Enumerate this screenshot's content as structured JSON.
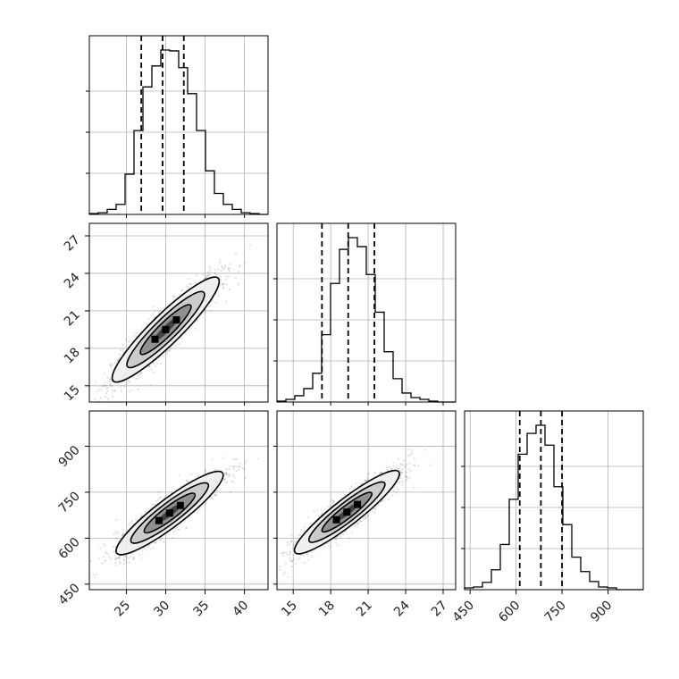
{
  "chart_data": {
    "type": "corner",
    "parameters": [
      {
        "ticks": [
          25,
          30,
          35,
          40
        ],
        "range": [
          20.3,
          43.0
        ]
      },
      {
        "ticks": [
          15,
          18,
          21,
          24,
          27
        ],
        "range": [
          13.7,
          28.0
        ]
      },
      {
        "ticks": [
          450,
          600,
          750,
          900
        ],
        "range": [
          432,
          1015
        ]
      }
    ],
    "quantiles": [
      0.16,
      0.5,
      0.84
    ],
    "colors": {
      "line": "#000000",
      "grid": "#b0b0b0",
      "points": "#000000"
    },
    "histograms": [
      {
        "bin_start": 20.3,
        "bin_width": 1.135,
        "counts": [
          1,
          2,
          6,
          12,
          48,
          100,
          152,
          177,
          196,
          195,
          175,
          144,
          100,
          52,
          25,
          12,
          6,
          2,
          1,
          0
        ],
        "quantile_lines": [
          26.9,
          29.6,
          32.3
        ]
      },
      {
        "bin_start": 13.7,
        "bin_width": 0.715,
        "counts": [
          1,
          3,
          7,
          15,
          32,
          75,
          132,
          170,
          183,
          173,
          142,
          100,
          56,
          26,
          10,
          5,
          3,
          1,
          0,
          0
        ],
        "quantile_lines": [
          17.3,
          19.4,
          21.5
        ]
      },
      {
        "bin_start": 432,
        "bin_width": 29.15,
        "counts": [
          2,
          3,
          8,
          22,
          50,
          100,
          150,
          173,
          182,
          160,
          114,
          72,
          36,
          20,
          9,
          3,
          2,
          0,
          0,
          0
        ],
        "quantile_lines": [
          612,
          681,
          750
        ]
      }
    ],
    "pairs": [
      {
        "x_param": 0,
        "y_param": 1,
        "center": [
          30.0,
          19.5
        ],
        "std": [
          3.4,
          2.1
        ],
        "corr": 0.92
      },
      {
        "x_param": 0,
        "y_param": 2,
        "center": [
          30.5,
          682
        ],
        "std": [
          3.4,
          68
        ],
        "corr": 0.91
      },
      {
        "x_param": 1,
        "y_param": 2,
        "center": [
          19.3,
          685
        ],
        "std": [
          2.1,
          68
        ],
        "corr": 0.92
      }
    ]
  }
}
